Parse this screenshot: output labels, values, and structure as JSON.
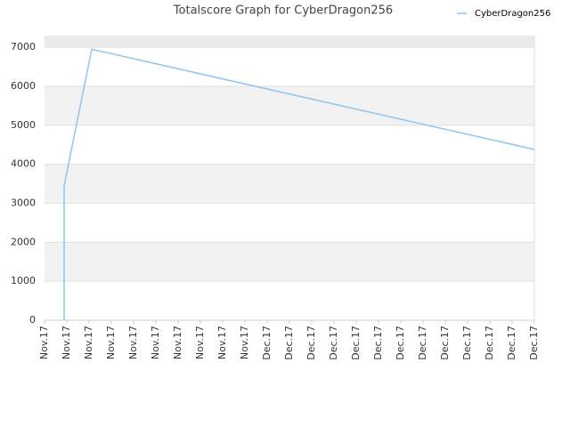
{
  "chart_data": {
    "type": "line",
    "title": "Totalscore Graph for CyberDragon256",
    "x": [
      0.88,
      0.88,
      2.12,
      22
    ],
    "xlim": [
      0,
      22
    ],
    "xticks": [
      {
        "value": 0,
        "label": "Nov.17"
      },
      {
        "value": 1,
        "label": "Nov.17"
      },
      {
        "value": 2,
        "label": "Nov.17"
      },
      {
        "value": 3,
        "label": "Nov.17"
      },
      {
        "value": 4,
        "label": "Nov.17"
      },
      {
        "value": 5,
        "label": "Nov.17"
      },
      {
        "value": 6,
        "label": "Nov.17"
      },
      {
        "value": 7,
        "label": "Nov.17"
      },
      {
        "value": 8,
        "label": "Nov.17"
      },
      {
        "value": 9,
        "label": "Nov.17"
      },
      {
        "value": 10,
        "label": "Dec.17"
      },
      {
        "value": 11,
        "label": "Dec.17"
      },
      {
        "value": 12,
        "label": "Dec.17"
      },
      {
        "value": 13,
        "label": "Dec.17"
      },
      {
        "value": 14,
        "label": "Dec.17"
      },
      {
        "value": 15,
        "label": "Dec.17"
      },
      {
        "value": 16,
        "label": "Dec.17"
      },
      {
        "value": 17,
        "label": "Dec.17"
      },
      {
        "value": 18,
        "label": "Dec.17"
      },
      {
        "value": 19,
        "label": "Dec.17"
      },
      {
        "value": 20,
        "label": "Dec.17"
      },
      {
        "value": 21,
        "label": "Dec.17"
      },
      {
        "value": 22,
        "label": "Dec.17"
      }
    ],
    "series": [
      {
        "name": "CyberDragon256",
        "color": "#90c4f0",
        "values": [
          0,
          3450,
          6950,
          4380
        ]
      }
    ],
    "ylim": [
      0,
      7300
    ],
    "yticks": [
      0,
      1000,
      2000,
      3000,
      4000,
      5000,
      6000,
      7000
    ],
    "grid": true,
    "legend": "top-right"
  }
}
